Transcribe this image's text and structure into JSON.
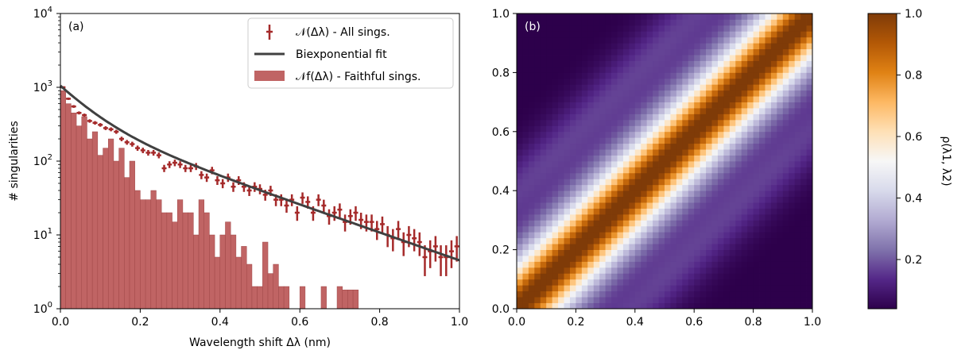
{
  "chart_data": [
    {
      "panel": "(a)",
      "type": "bar",
      "xlabel": "Wavelength shift Δλ (nm)",
      "ylabel": "# singularities",
      "xlim": [
        0.0,
        1.0
      ],
      "ylim": [
        1,
        10000
      ],
      "yscale": "log",
      "x_ticks": [
        "0.0",
        "0.2",
        "0.4",
        "0.6",
        "0.8",
        "1.0"
      ],
      "y_ticks": [
        {
          "base": "10",
          "exp": "0"
        },
        {
          "base": "10",
          "exp": "1"
        },
        {
          "base": "10",
          "exp": "2"
        },
        {
          "base": "10",
          "exp": "3"
        },
        {
          "base": "10",
          "exp": "4"
        }
      ],
      "grid": false,
      "legend_position": "top-right",
      "legend": [
        {
          "name": "𝒩(Δλ) - All sings.",
          "kind": "errorbar",
          "color": "#a52a2a"
        },
        {
          "name": "Biexponential fit",
          "kind": "line",
          "color": "#404040"
        },
        {
          "name": "𝒩f(Δλ) - Faithful sings.",
          "kind": "bar",
          "color": "#c06464"
        }
      ],
      "series": [
        {
          "name": "𝒩f(Δλ) - Faithful sings.",
          "kind": "histogram",
          "bin_width": 0.0133,
          "bin_starts": [
            0.0,
            0.0133,
            0.0267,
            0.04,
            0.0533,
            0.0667,
            0.08,
            0.0933,
            0.1067,
            0.12,
            0.1333,
            0.1467,
            0.16,
            0.1733,
            0.1867,
            0.2,
            0.2133,
            0.2267,
            0.24,
            0.2533,
            0.2667,
            0.28,
            0.2933,
            0.3067,
            0.32,
            0.3333,
            0.3467,
            0.36,
            0.3733,
            0.3867,
            0.4,
            0.4133,
            0.4267,
            0.44,
            0.4533,
            0.4667,
            0.48,
            0.4933,
            0.5067,
            0.52,
            0.5333,
            0.5467,
            0.56,
            0.5733,
            0.5867,
            0.6,
            0.6133,
            0.6267,
            0.64,
            0.6533,
            0.6667,
            0.68,
            0.6933,
            0.7067,
            0.72,
            0.7333
          ],
          "values": [
            900,
            600,
            450,
            300,
            400,
            200,
            250,
            120,
            150,
            200,
            100,
            150,
            60,
            100,
            40,
            30,
            30,
            40,
            30,
            20,
            20,
            15,
            30,
            20,
            20,
            10,
            30,
            20,
            10,
            5,
            10,
            15,
            10,
            5,
            7,
            4,
            2,
            2,
            8,
            3,
            4,
            2,
            2,
            0,
            0,
            2,
            0,
            0,
            0,
            2,
            0,
            0,
            2,
            1.8,
            1.8,
            1.8
          ]
        },
        {
          "name": "𝒩(Δλ) - All sings.",
          "kind": "errorbar",
          "x": [
            0.0067,
            0.02,
            0.0333,
            0.0467,
            0.06,
            0.0733,
            0.0867,
            0.1,
            0.1133,
            0.1267,
            0.14,
            0.1533,
            0.1667,
            0.18,
            0.1933,
            0.2067,
            0.22,
            0.2333,
            0.2467,
            0.26,
            0.2733,
            0.2867,
            0.3,
            0.3133,
            0.3267,
            0.34,
            0.3533,
            0.3667,
            0.38,
            0.3933,
            0.4067,
            0.42,
            0.4333,
            0.4467,
            0.46,
            0.4733,
            0.4867,
            0.5,
            0.5133,
            0.5267,
            0.54,
            0.5533,
            0.5667,
            0.58,
            0.5933,
            0.6067,
            0.62,
            0.6333,
            0.6467,
            0.66,
            0.6733,
            0.6867,
            0.7,
            0.7133,
            0.7267,
            0.74,
            0.7533,
            0.7667,
            0.78,
            0.7933,
            0.8067,
            0.82,
            0.8333,
            0.8467,
            0.86,
            0.8733,
            0.8867,
            0.9,
            0.9133,
            0.9267,
            0.94,
            0.9533,
            0.9667,
            0.98,
            0.9933
          ],
          "y": [
            1000,
            700,
            550,
            450,
            420,
            350,
            330,
            310,
            280,
            270,
            250,
            200,
            180,
            170,
            150,
            140,
            130,
            130,
            120,
            80,
            90,
            95,
            90,
            80,
            80,
            85,
            65,
            60,
            75,
            55,
            50,
            60,
            45,
            55,
            45,
            40,
            45,
            42,
            35,
            40,
            30,
            30,
            25,
            30,
            20,
            32,
            28,
            20,
            30,
            25,
            18,
            20,
            22,
            15,
            18,
            20,
            16,
            15,
            15,
            12,
            14,
            10,
            9,
            12,
            8,
            10,
            9,
            8,
            5,
            6,
            7,
            5,
            5,
            6,
            7
          ]
        },
        {
          "name": "Biexponential fit",
          "kind": "line",
          "A1": 700,
          "t1": 0.07,
          "A2": 350,
          "t2": 0.23
        }
      ]
    },
    {
      "panel": "(b)",
      "type": "heatmap",
      "xlim": [
        0.0,
        1.0
      ],
      "ylim": [
        0.0,
        1.0
      ],
      "x_ticks": [
        "0.0",
        "0.2",
        "0.4",
        "0.6",
        "0.8",
        "1.0"
      ],
      "y_ticks": [
        "0.0",
        "0.2",
        "0.4",
        "0.6",
        "0.8",
        "1.0"
      ],
      "grid_size": 50,
      "colormap": "PuOr",
      "colormap_stops": [
        "#2d004b",
        "#542788",
        "#8073ac",
        "#b2abd2",
        "#d8daeb",
        "#f7f7f7",
        "#fee0b6",
        "#fdb863",
        "#e08214",
        "#b35806",
        "#7f3b08"
      ],
      "colorbar_range": [
        0.04,
        1.0
      ],
      "colorbar_ticks": [
        "0.2",
        "0.4",
        "0.6",
        "0.8",
        "1.0"
      ],
      "colorbar_label": "ρ(λ1, λ2)",
      "correlation_model": "rho = 1 - k*|x-y| with secondary banding; diagonal = 1.0"
    }
  ]
}
